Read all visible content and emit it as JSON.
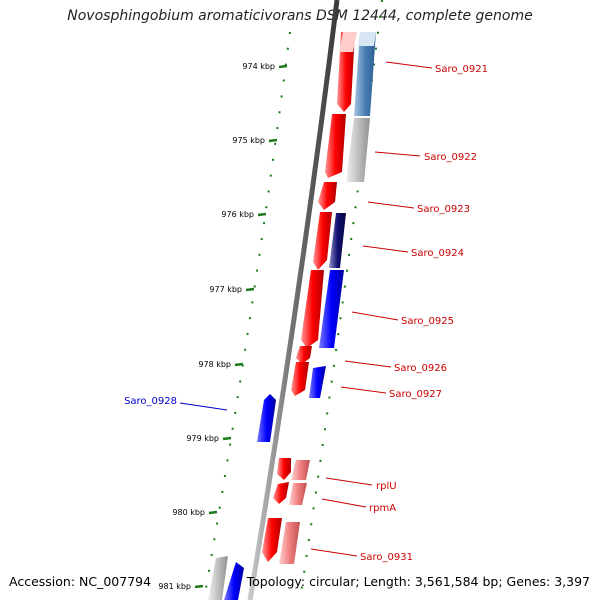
{
  "title": "Novosphingobium aromaticivorans DSM 12444, complete genome",
  "footer": {
    "accession": "Accession: NC_007794",
    "summary": "Topology: circular; Length: 3,561,584 bp; Genes: 3,397"
  },
  "ruler": {
    "ticks": [
      "974 kbp",
      "975 kbp",
      "976 kbp",
      "977 kbp",
      "978 kbp",
      "979 kbp",
      "980 kbp",
      "981 kbp"
    ]
  },
  "colors": {
    "forward": "#ff0000",
    "reverse": "#0000ff",
    "label_forward": "#cc0000",
    "label_reverse": "#0000cc",
    "backbone": "#808080",
    "tick": "#1a7a1a"
  },
  "genes": [
    {
      "label": "Saro_0921",
      "side": "right"
    },
    {
      "label": "Saro_0922",
      "side": "right"
    },
    {
      "label": "Saro_0923",
      "side": "right"
    },
    {
      "label": "Saro_0924",
      "side": "right"
    },
    {
      "label": "Saro_0925",
      "side": "right"
    },
    {
      "label": "Saro_0926",
      "side": "right"
    },
    {
      "label": "Saro_0927",
      "side": "right"
    },
    {
      "label": "Saro_0928",
      "side": "left"
    },
    {
      "label": "rplU",
      "side": "right"
    },
    {
      "label": "rpmA",
      "side": "right"
    },
    {
      "label": "Saro_0931",
      "side": "right"
    }
  ]
}
